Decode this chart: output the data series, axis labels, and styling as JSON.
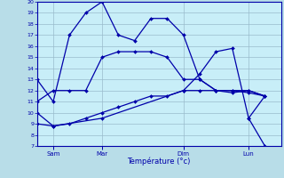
{
  "background_color": "#b8dde8",
  "plot_bg_color": "#c8eef8",
  "grid_color": "#99bbcc",
  "line_color": "#0000aa",
  "xlabel": "Température (°c)",
  "ylim": [
    7,
    20
  ],
  "yticks": [
    7,
    8,
    9,
    10,
    11,
    12,
    13,
    14,
    15,
    16,
    17,
    18,
    19,
    20
  ],
  "x_ticks_labels": [
    "Sam",
    "Mar",
    "Dim",
    "Lun"
  ],
  "x_ticks_pos": [
    1,
    4,
    9,
    13
  ],
  "xlim": [
    0,
    15
  ],
  "series": [
    {
      "x": [
        0,
        1,
        2,
        3,
        4,
        5,
        6,
        7,
        8,
        9,
        10,
        11,
        12,
        13,
        14
      ],
      "y": [
        13,
        11,
        17,
        19,
        20,
        17,
        16.5,
        18.5,
        18.5,
        17,
        13,
        12,
        11.8,
        12,
        11.5
      ]
    },
    {
      "x": [
        0,
        1,
        2,
        3,
        4,
        5,
        6,
        7,
        8,
        9,
        10,
        11,
        12,
        13,
        14
      ],
      "y": [
        11,
        12,
        12,
        12,
        15,
        15.5,
        15.5,
        15.5,
        15,
        13,
        13,
        12,
        12,
        12,
        11.5
      ]
    },
    {
      "x": [
        0,
        1,
        2,
        3,
        4,
        5,
        6,
        7,
        8,
        9,
        10,
        11,
        12,
        13,
        14
      ],
      "y": [
        9,
        8.8,
        9.0,
        9.5,
        10,
        10.5,
        11,
        11.5,
        11.5,
        12,
        12,
        12,
        12,
        11.8,
        11.5
      ]
    },
    {
      "x": [
        0,
        1,
        4,
        9,
        10,
        11,
        12,
        13,
        14
      ],
      "y": [
        10,
        8.8,
        9.5,
        12,
        13.5,
        15.5,
        15.8,
        9.5,
        7
      ]
    },
    {
      "x": [
        13,
        14
      ],
      "y": [
        9.5,
        11.5
      ]
    }
  ]
}
